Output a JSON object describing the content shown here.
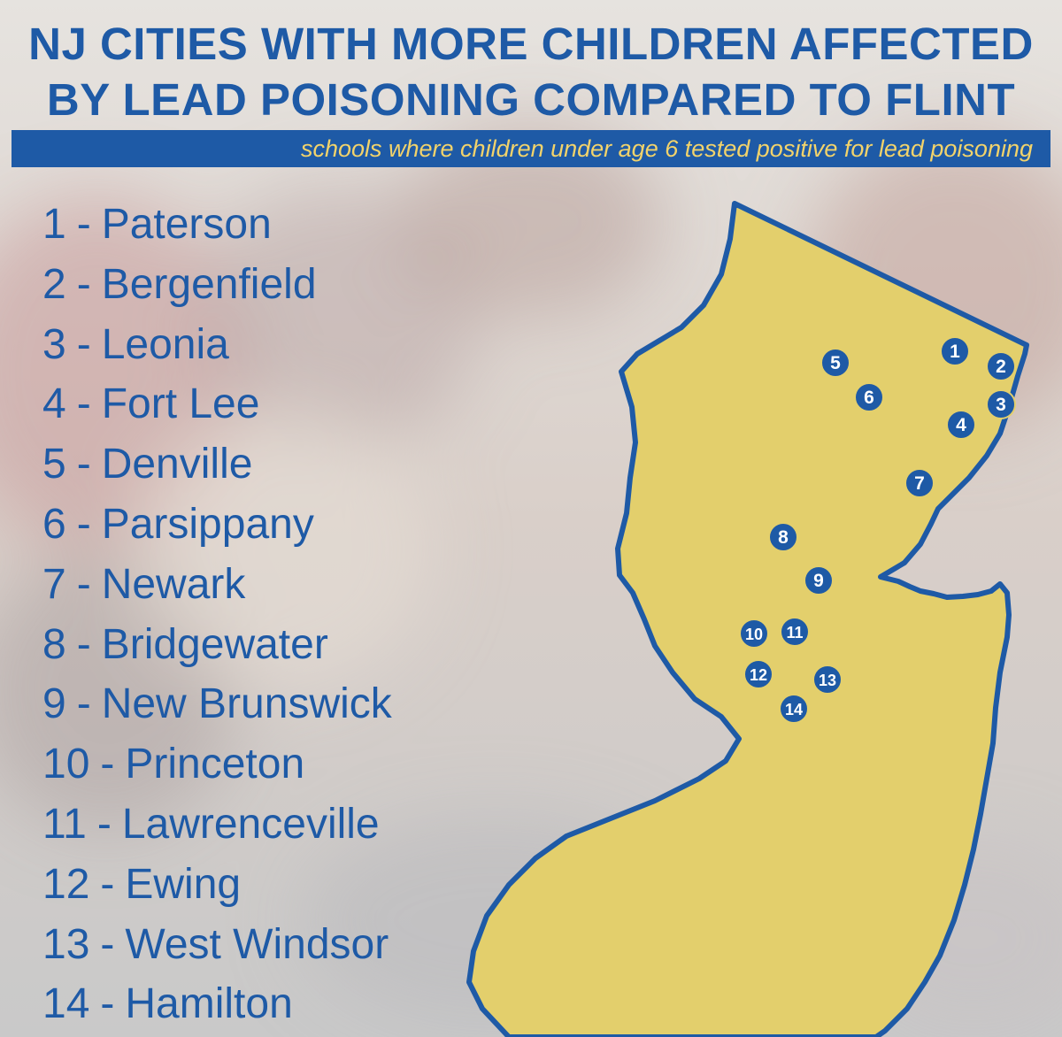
{
  "title": {
    "line1": "NJ CITIES WITH MORE CHILDREN AFFECTED",
    "line2": "BY LEAD POISONING COMPARED TO FLINT"
  },
  "subtitle": "schools where children under age 6 tested positive for lead poisoning",
  "colors": {
    "primary_blue": "#1e5aa6",
    "map_yellow": "#e3cf6c",
    "subtitle_text": "#f2d36b"
  },
  "cities": [
    {
      "number": "1",
      "name": "Paterson"
    },
    {
      "number": "2",
      "name": "Bergenfield"
    },
    {
      "number": "3",
      "name": "Leonia"
    },
    {
      "number": "4",
      "name": "Fort Lee"
    },
    {
      "number": "5",
      "name": "Denville"
    },
    {
      "number": "6",
      "name": "Parsippany"
    },
    {
      "number": "7",
      "name": "Newark"
    },
    {
      "number": "8",
      "name": "Bridgewater"
    },
    {
      "number": "9",
      "name": "New Brunswick"
    },
    {
      "number": "10",
      "name": "Princeton"
    },
    {
      "number": "11",
      "name": "Lawrenceville"
    },
    {
      "number": "12",
      "name": "Ewing"
    },
    {
      "number": "13",
      "name": "West Windsor"
    },
    {
      "number": "14",
      "name": "Hamilton"
    }
  ],
  "separator": "-"
}
